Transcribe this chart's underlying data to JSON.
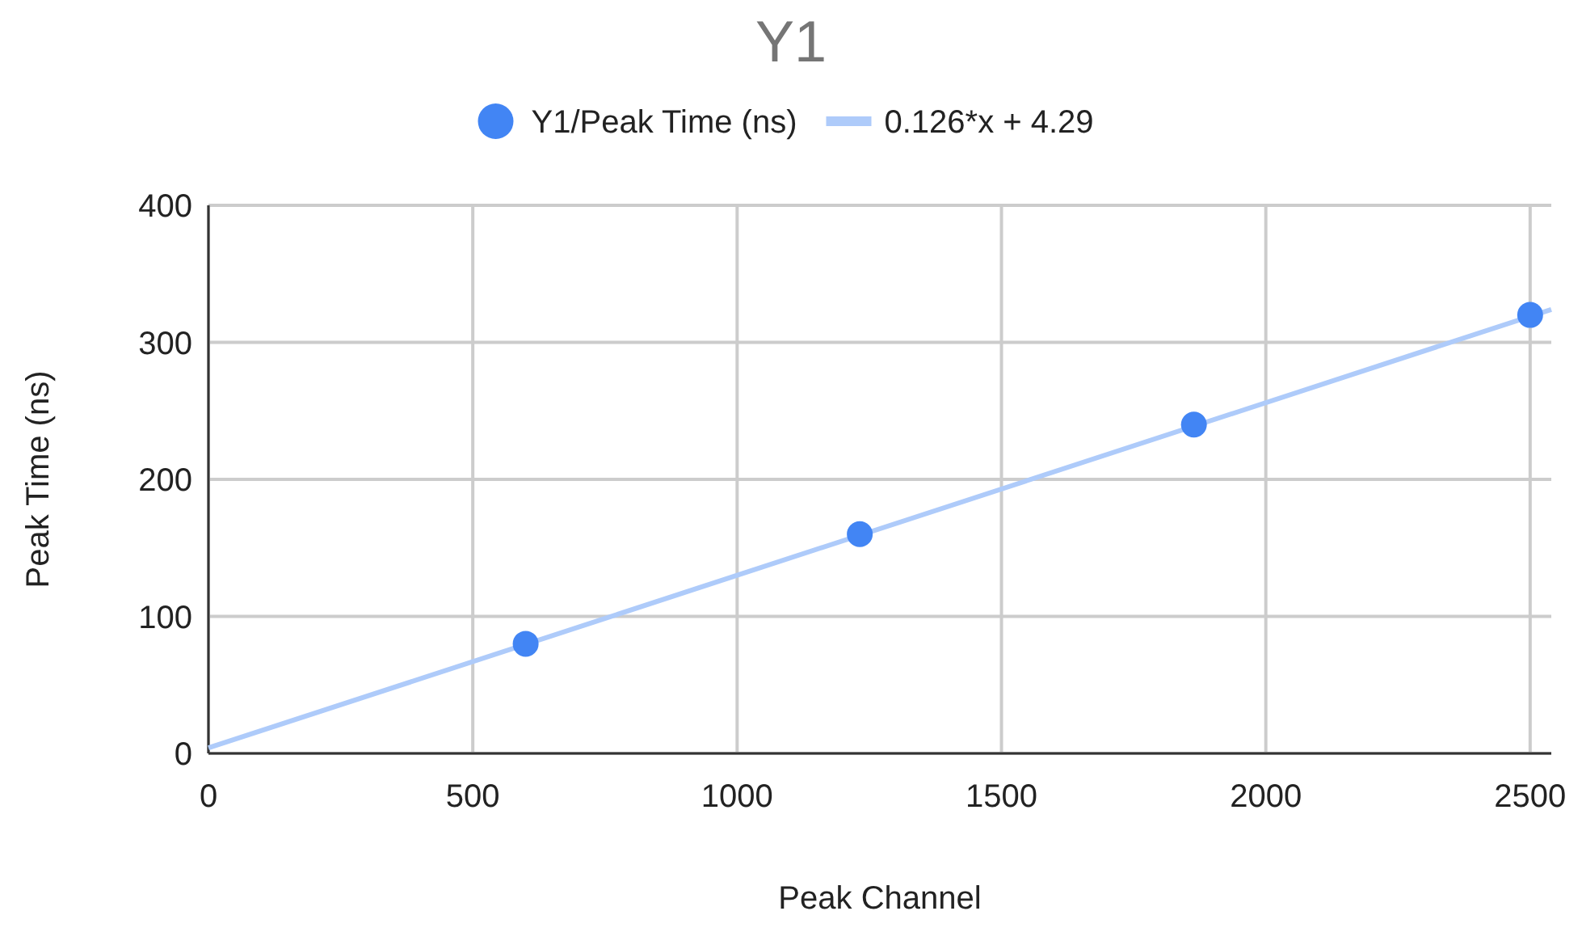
{
  "chart_data": {
    "type": "scatter",
    "title": "Y1",
    "xlabel": "Peak Channel",
    "ylabel": "Peak Time (ns)",
    "xlim": [
      0,
      2540
    ],
    "ylim": [
      0,
      400
    ],
    "xticks": [
      0,
      500,
      1000,
      1500,
      2000,
      2500
    ],
    "yticks": [
      0,
      100,
      200,
      300,
      400
    ],
    "grid": true,
    "legend": "top",
    "series": [
      {
        "name": "Y1/Peak Time (ns)",
        "color": "#4285f4",
        "marker": "circle",
        "x": [
          600,
          1232,
          1864,
          2500
        ],
        "values": [
          80,
          160,
          240,
          320
        ]
      },
      {
        "name": "0.126*x + 4.29",
        "type": "line",
        "marker": "none",
        "color": "#aecbfa",
        "x": [
          0,
          2540
        ],
        "values": [
          4,
          324
        ]
      }
    ]
  }
}
